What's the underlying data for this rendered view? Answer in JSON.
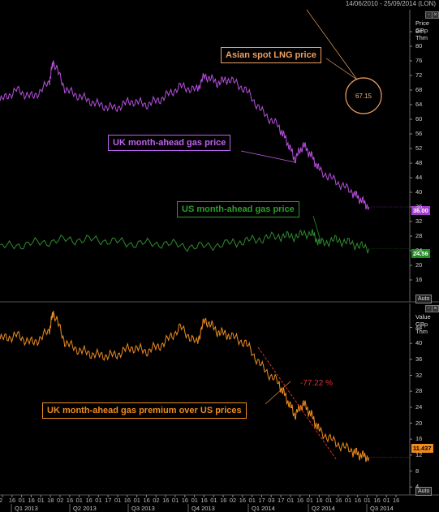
{
  "header": {
    "date_range": "14/06/2010 - 25/09/2014 (LON)"
  },
  "colors": {
    "uk_gas": "#b84fe0",
    "us_gas": "#2e8c2e",
    "premium": "#f08c1e",
    "lng_callout": "#f0a060",
    "trend": "#e03030",
    "grid": "#2a2a2a"
  },
  "chart_data": [
    {
      "type": "line",
      "title": "",
      "ylabel": "Price GBp Thm",
      "ylabel_lines": [
        "Price",
        "GBp",
        "Thm"
      ],
      "ylim": [
        10,
        90
      ],
      "yticks": [
        16,
        20,
        24,
        28,
        32,
        36,
        40,
        44,
        48,
        52,
        56,
        60,
        64,
        68,
        72,
        76,
        80,
        84
      ],
      "grid": false,
      "series": [
        {
          "name": "UK month-ahead gas price",
          "x": [
            0,
            0.04,
            0.08,
            0.12,
            0.13,
            0.16,
            0.2,
            0.24,
            0.28,
            0.32,
            0.36,
            0.4,
            0.44,
            0.48,
            0.5,
            0.53,
            0.56,
            0.6,
            0.64,
            0.68,
            0.7,
            0.72,
            0.74,
            0.76,
            0.78,
            0.82,
            0.86,
            0.88,
            0.9
          ],
          "values": [
            65,
            68,
            66,
            70,
            76,
            68,
            66,
            64,
            63,
            65,
            64,
            66,
            69,
            68,
            72,
            70,
            71,
            68,
            62,
            58,
            54,
            49,
            53,
            50,
            46,
            43,
            40,
            38,
            36
          ],
          "last_value": "36.00"
        },
        {
          "name": "US month-ahead gas price",
          "x": [
            0,
            0.08,
            0.16,
            0.24,
            0.32,
            0.4,
            0.48,
            0.56,
            0.62,
            0.68,
            0.72,
            0.76,
            0.78,
            0.82,
            0.86,
            0.9
          ],
          "values": [
            25,
            26,
            27,
            27,
            26,
            26,
            25,
            26,
            27,
            28,
            28,
            29,
            26,
            27,
            26,
            24.5
          ],
          "last_value": "24.56"
        }
      ],
      "annotations": {
        "lng_label": "Asian spot LNG price",
        "lng_value": "67.15",
        "uk_label": "UK month-ahead gas price",
        "us_label": "US month-ahead gas price"
      },
      "auto_label": "Auto"
    },
    {
      "type": "line",
      "title": "",
      "ylabel": "Value GBp Thm",
      "ylabel_lines": [
        "Value",
        "GBp",
        "Thm"
      ],
      "ylim": [
        2,
        50
      ],
      "yticks": [
        4,
        8,
        12,
        16,
        20,
        24,
        28,
        32,
        36,
        40,
        44
      ],
      "grid": false,
      "series": [
        {
          "name": "UK month-ahead gas premium over US prices",
          "x": [
            0,
            0.04,
            0.08,
            0.12,
            0.13,
            0.16,
            0.2,
            0.24,
            0.28,
            0.32,
            0.36,
            0.4,
            0.44,
            0.48,
            0.5,
            0.53,
            0.56,
            0.6,
            0.64,
            0.68,
            0.7,
            0.72,
            0.74,
            0.76,
            0.78,
            0.82,
            0.86,
            0.88,
            0.9
          ],
          "values": [
            41,
            42,
            40,
            43,
            48,
            40,
            38,
            37,
            37,
            39,
            38,
            40,
            44,
            40,
            46,
            43,
            42,
            40,
            34,
            30,
            26,
            22,
            25,
            22,
            18,
            15,
            13,
            12,
            11.4
          ],
          "last_value": "11.437"
        }
      ],
      "trendline": {
        "x": [
          0.63,
          0.82
        ],
        "values": [
          39,
          11
        ]
      },
      "annotations": {
        "change_pct": "-77.22 %",
        "premium_label": "UK month-ahead gas premium over US prices"
      },
      "auto_label": "Auto"
    }
  ],
  "x_axis": {
    "day_ticks": [
      "2",
      "16",
      "01",
      "16",
      "01",
      "18",
      "02",
      "16",
      "01",
      "16",
      "01",
      "17",
      "01",
      "16",
      "01",
      "16",
      "02",
      "16",
      "01",
      "16",
      "01",
      "16",
      "01",
      "16",
      "02",
      "16",
      "01",
      "17",
      "03",
      "17",
      "01",
      "16",
      "01",
      "16",
      "01",
      "16",
      "01",
      "16",
      "01",
      "16",
      "01",
      "16"
    ],
    "quarters": [
      "Q1 2013",
      "Q2 2013",
      "Q3 2013",
      "Q4 2013",
      "Q1 2014",
      "Q2 2014",
      "Q3 2014"
    ]
  }
}
